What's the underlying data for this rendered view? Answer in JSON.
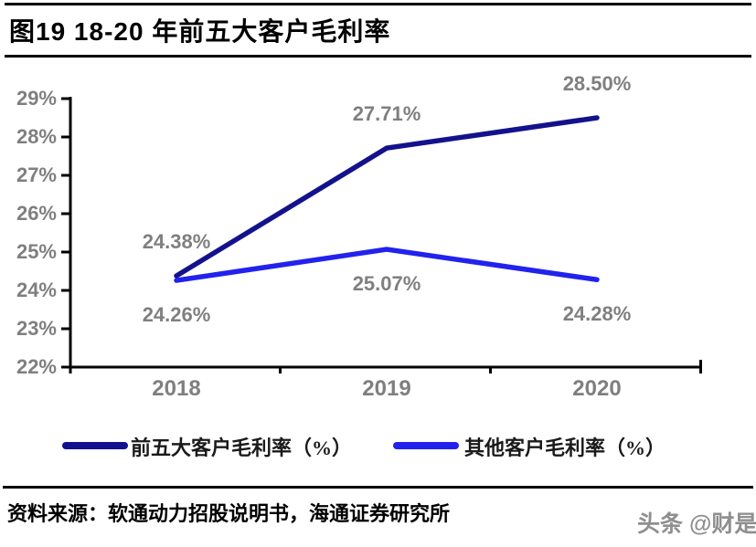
{
  "figure": {
    "source": "资料来源：软通动力招股说明书，海通证券研究所",
    "watermark": "头条 @财是"
  },
  "colors": {
    "axis": "#000000",
    "data_label": "#7f7f7f",
    "text": "#1a1a1a",
    "watermark": "#8f8f8f"
  },
  "chart_data": {
    "type": "line",
    "title": "图19 18-20 年前五大客户毛利率",
    "categories": [
      "2018",
      "2019",
      "2020"
    ],
    "series": [
      {
        "name": "前五大客户毛利率（%）",
        "color": "#13128c",
        "values": [
          24.38,
          27.71,
          28.5
        ],
        "labels": [
          "24.38%",
          "27.71%",
          "28.50%"
        ],
        "label_position": "above"
      },
      {
        "name": "其他客户毛利率（%）",
        "color": "#2222ee",
        "values": [
          24.26,
          25.07,
          24.28
        ],
        "labels": [
          "24.26%",
          "25.07%",
          "24.28%"
        ],
        "label_position": "below"
      }
    ],
    "ylim": [
      22,
      29
    ],
    "ytick_step": 1,
    "ytick_labels": [
      "22%",
      "23%",
      "24%",
      "25%",
      "26%",
      "27%",
      "28%",
      "29%"
    ],
    "xlabel": "",
    "ylabel": "",
    "grid": false,
    "legend_position": "bottom"
  }
}
